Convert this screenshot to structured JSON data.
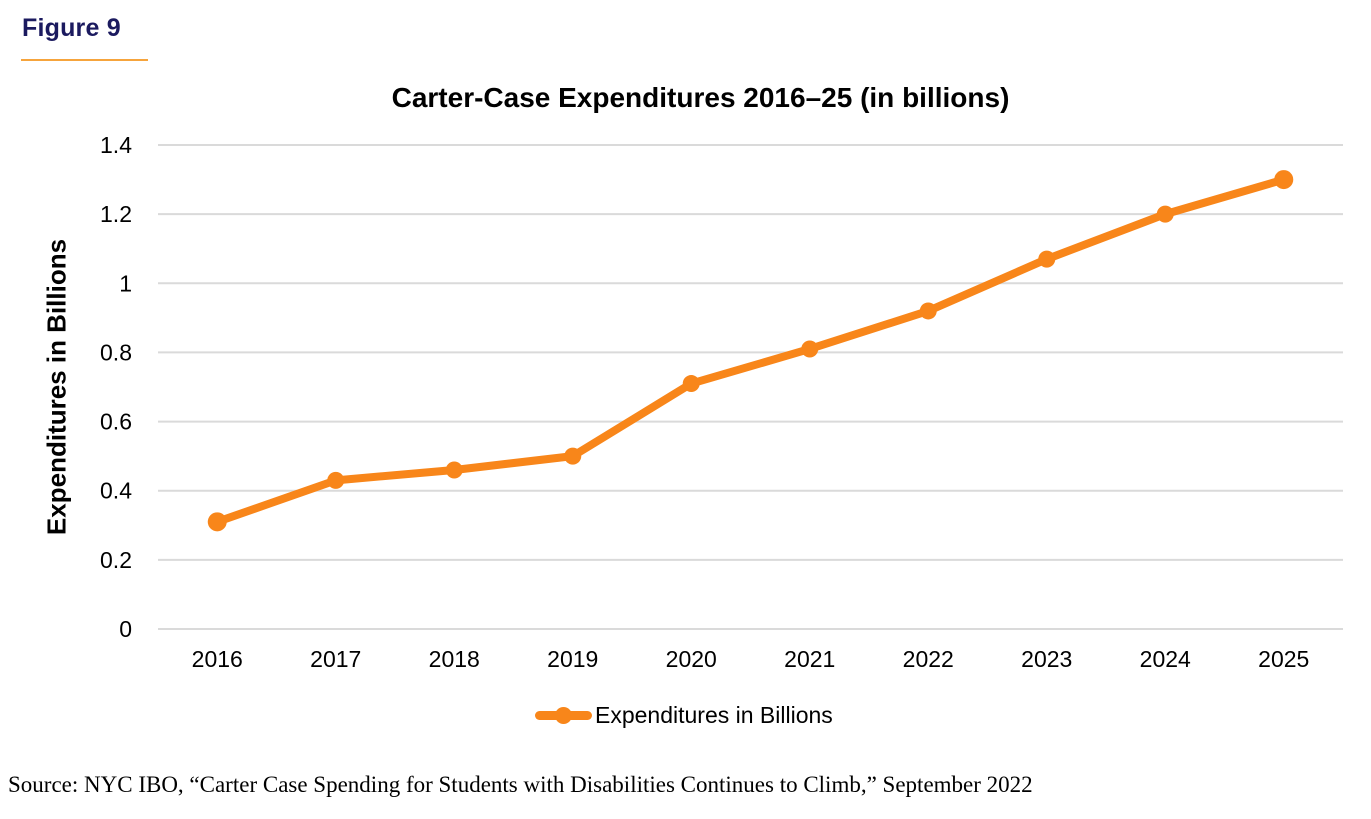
{
  "header": {
    "figure_label": "Figure 9"
  },
  "chart_data": {
    "type": "line",
    "title": "Carter-Case Expenditures 2016–25 (in billions)",
    "categories": [
      "2016",
      "2017",
      "2018",
      "2019",
      "2020",
      "2021",
      "2022",
      "2023",
      "2024",
      "2025"
    ],
    "series": [
      {
        "name": "Expenditures in Billions",
        "values": [
          0.31,
          0.43,
          0.46,
          0.5,
          0.71,
          0.81,
          0.92,
          1.07,
          1.2,
          1.3
        ]
      }
    ],
    "xlabel": "",
    "ylabel": "Expenditures in Billions",
    "ylim": [
      0,
      1.4
    ],
    "yticks": [
      0,
      0.2,
      0.4,
      0.6,
      0.8,
      1,
      1.2,
      1.4
    ],
    "ytick_labels": [
      "0",
      "0.2",
      "0.4",
      "0.6",
      "0.8",
      "1",
      "1.2",
      "1.4"
    ],
    "grid": true,
    "legend_position": "bottom"
  },
  "footer": {
    "source": "Source: NYC IBO, “Carter Case Spending for Students with Disabilities Continues to Climb,” September 2022"
  },
  "colors": {
    "accent_orange": "#F8861A",
    "underline_orange": "#F6A43C",
    "navy": "#1B1A5F",
    "gridline": "#DADADA",
    "text": "#000000"
  }
}
